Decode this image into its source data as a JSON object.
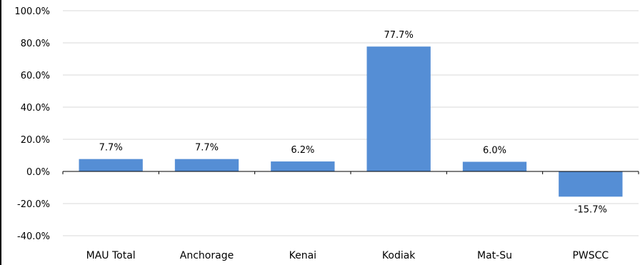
{
  "chart_data": {
    "type": "bar",
    "categories": [
      "MAU Total",
      "Anchorage",
      "Kenai",
      "Kodiak",
      "Mat-Su",
      "PWSCC"
    ],
    "values": [
      7.7,
      7.7,
      6.2,
      77.7,
      6.0,
      -15.7
    ],
    "data_labels": [
      "7.7%",
      "7.7%",
      "6.2%",
      "77.7%",
      "6.0%",
      "-15.7%"
    ],
    "ylim": [
      -40,
      100
    ],
    "yticks": [
      -40,
      -20,
      0,
      20,
      40,
      60,
      80,
      100
    ],
    "ytick_labels": [
      "-40.0%",
      "-20.0%",
      "0.0%",
      "20.0%",
      "40.0%",
      "60.0%",
      "80.0%",
      "100.0%"
    ],
    "grid": true,
    "bar_color": "#558ed5",
    "title": "",
    "xlabel": "",
    "ylabel": ""
  }
}
